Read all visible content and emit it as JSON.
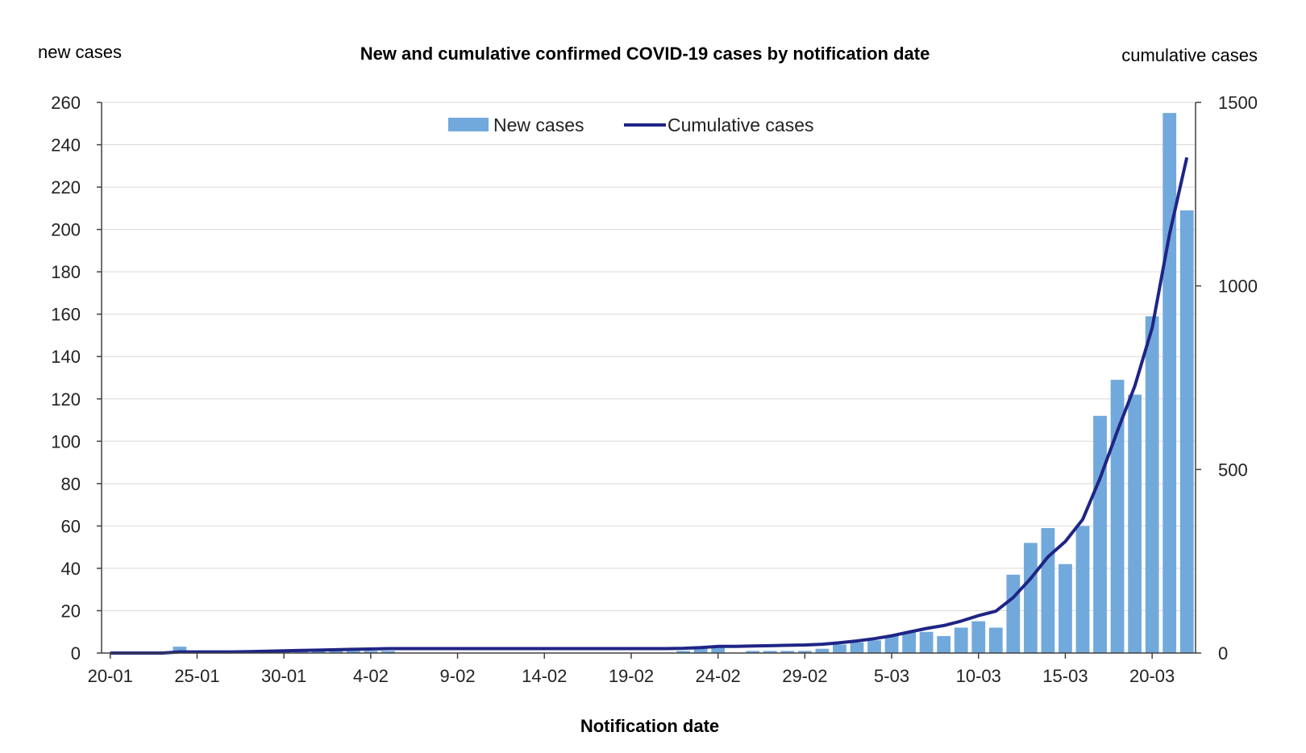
{
  "chart_data": {
    "type": "bar",
    "title": "New and cumulative confirmed COVID-19 cases by notification date",
    "xlabel": "Notification date",
    "ylabel_left": "new cases",
    "ylabel_right": "cumulative cases",
    "ylim_left": [
      0,
      260
    ],
    "yticks_left": [
      0,
      20,
      40,
      60,
      80,
      100,
      120,
      140,
      160,
      180,
      200,
      220,
      240,
      260
    ],
    "ylim_right": [
      0,
      1500
    ],
    "yticks_right": [
      0,
      500,
      1000,
      1500
    ],
    "grid": true,
    "legend_position": "top-center",
    "x_tick_labels": [
      "20-01",
      "25-01",
      "30-01",
      "4-02",
      "9-02",
      "14-02",
      "19-02",
      "24-02",
      "29-02",
      "5-03",
      "10-03",
      "15-03",
      "20-03"
    ],
    "categories": [
      "20-01",
      "21-01",
      "22-01",
      "23-01",
      "24-01",
      "25-01",
      "26-01",
      "27-01",
      "28-01",
      "29-01",
      "30-01",
      "31-01",
      "1-02",
      "2-02",
      "3-02",
      "4-02",
      "5-02",
      "6-02",
      "7-02",
      "8-02",
      "9-02",
      "10-02",
      "11-02",
      "12-02",
      "13-02",
      "14-02",
      "15-02",
      "16-02",
      "17-02",
      "18-02",
      "19-02",
      "20-02",
      "21-02",
      "22-02",
      "23-02",
      "24-02",
      "25-02",
      "26-02",
      "27-02",
      "28-02",
      "29-02",
      "1-03",
      "2-03",
      "3-03",
      "4-03",
      "5-03",
      "6-03",
      "7-03",
      "8-03",
      "9-03",
      "10-03",
      "11-03",
      "12-03",
      "13-03",
      "14-03",
      "15-03",
      "16-03",
      "17-03",
      "18-03",
      "19-03",
      "20-03",
      "21-03",
      "22-03"
    ],
    "series": [
      {
        "name": "New cases",
        "type": "bar",
        "axis": "left",
        "color": "#72a9dc",
        "values": [
          0,
          0,
          0,
          0,
          3,
          0,
          0,
          0,
          1,
          1,
          1,
          1,
          1,
          1,
          1,
          1,
          1,
          0,
          0,
          0,
          0,
          0,
          0,
          0,
          0,
          0,
          0,
          0,
          0,
          0,
          0,
          0,
          0,
          1,
          2,
          3,
          0,
          1,
          1,
          1,
          1,
          2,
          4,
          5,
          6,
          8,
          10,
          10,
          8,
          12,
          15,
          12,
          37,
          52,
          59,
          42,
          60,
          112,
          129,
          122,
          159,
          255,
          209
        ]
      },
      {
        "name": "Cumulative cases",
        "type": "line",
        "axis": "right",
        "color": "#1f2585",
        "values": [
          0,
          0,
          0,
          0,
          3,
          3,
          3,
          3,
          4,
          5,
          6,
          7,
          8,
          9,
          10,
          11,
          12,
          12,
          12,
          12,
          12,
          12,
          12,
          12,
          12,
          12,
          12,
          12,
          12,
          12,
          12,
          12,
          12,
          13,
          15,
          18,
          18,
          19,
          20,
          21,
          22,
          24,
          28,
          33,
          39,
          47,
          57,
          67,
          75,
          87,
          102,
          114,
          151,
          203,
          262,
          304,
          364,
          476,
          605,
          727,
          886,
          1141,
          1350
        ]
      }
    ]
  },
  "colors": {
    "bar": "#72a9dc",
    "line": "#1f2585",
    "grid": "#d9d9d9",
    "axis": "#404040"
  }
}
